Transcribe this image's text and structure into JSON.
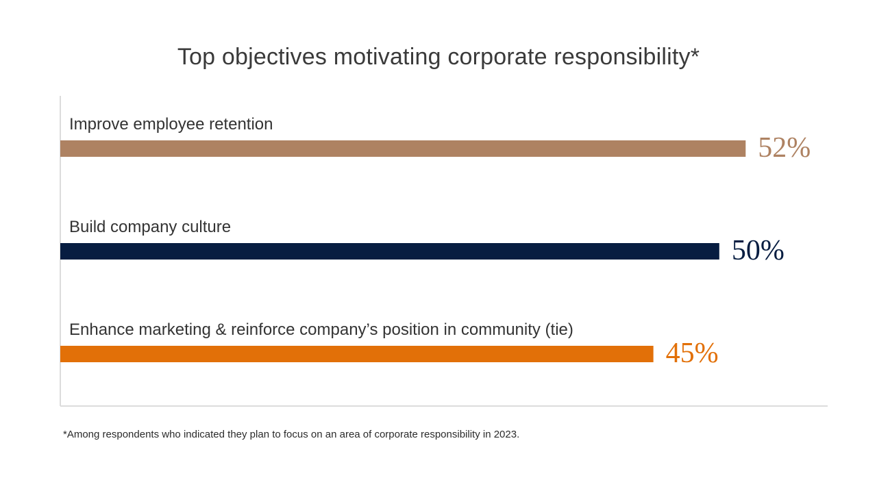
{
  "chart_data": {
    "type": "bar",
    "orientation": "horizontal",
    "title": "Top objectives motivating corporate responsibility*",
    "categories": [
      "Improve employee retention",
      "Build company culture",
      "Enhance marketing & reinforce company’s position in community (tie)"
    ],
    "values": [
      52,
      50,
      45
    ],
    "value_labels": [
      "52%",
      "50%",
      "45%"
    ],
    "colors": [
      "#ae8262",
      "#071d41",
      "#e27008"
    ],
    "xlim": [
      0,
      55
    ],
    "grid": false,
    "legend": "none",
    "footnote": "*Among respondents who indicated they plan to focus on an area of corporate responsibility in 2023."
  }
}
